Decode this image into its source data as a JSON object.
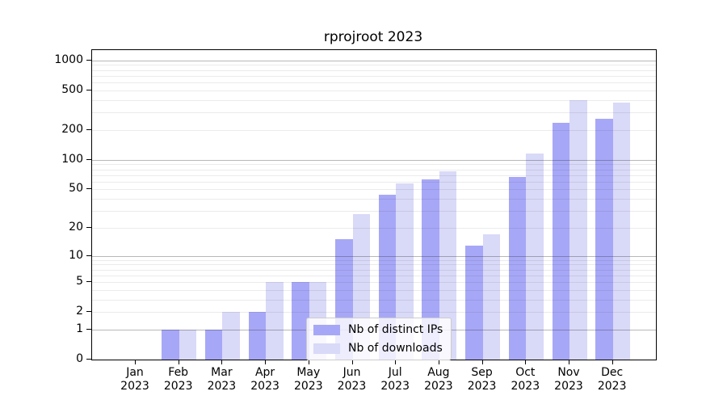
{
  "chart_data": {
    "type": "bar",
    "title": "rprojroot 2023",
    "xlabel": "",
    "ylabel": "",
    "y_scale": "log1p",
    "grid": true,
    "legend_position": "lower center",
    "y_ticks": [
      0,
      1,
      2,
      5,
      10,
      20,
      50,
      100,
      200,
      500,
      1000
    ],
    "y_minor_gridlines": [
      2,
      3,
      4,
      5,
      6,
      7,
      8,
      9,
      20,
      30,
      40,
      50,
      60,
      70,
      80,
      90,
      200,
      300,
      400,
      500,
      600,
      700,
      800,
      900
    ],
    "y_major_gridlines": [
      1,
      10,
      100,
      1000
    ],
    "ylim": [
      0,
      1270
    ],
    "x_labels": [
      [
        "Jan",
        "2023"
      ],
      [
        "Feb",
        "2023"
      ],
      [
        "Mar",
        "2023"
      ],
      [
        "Apr",
        "2023"
      ],
      [
        "May",
        "2023"
      ],
      [
        "Jun",
        "2023"
      ],
      [
        "Jul",
        "2023"
      ],
      [
        "Aug",
        "2023"
      ],
      [
        "Sep",
        "2023"
      ],
      [
        "Oct",
        "2023"
      ],
      [
        "Nov",
        "2023"
      ],
      [
        "Dec",
        "2023"
      ]
    ],
    "series": [
      {
        "name": "Nb of distinct IPs",
        "color": "#a7a7f7",
        "values": [
          0,
          1,
          1,
          2,
          5,
          15,
          44,
          63,
          13,
          67,
          238,
          260
        ]
      },
      {
        "name": "Nb of downloads",
        "color": "#d9d9f8",
        "values": [
          0,
          1,
          2,
          5,
          5,
          28,
          58,
          77,
          17,
          115,
          395,
          378
        ]
      }
    ]
  }
}
